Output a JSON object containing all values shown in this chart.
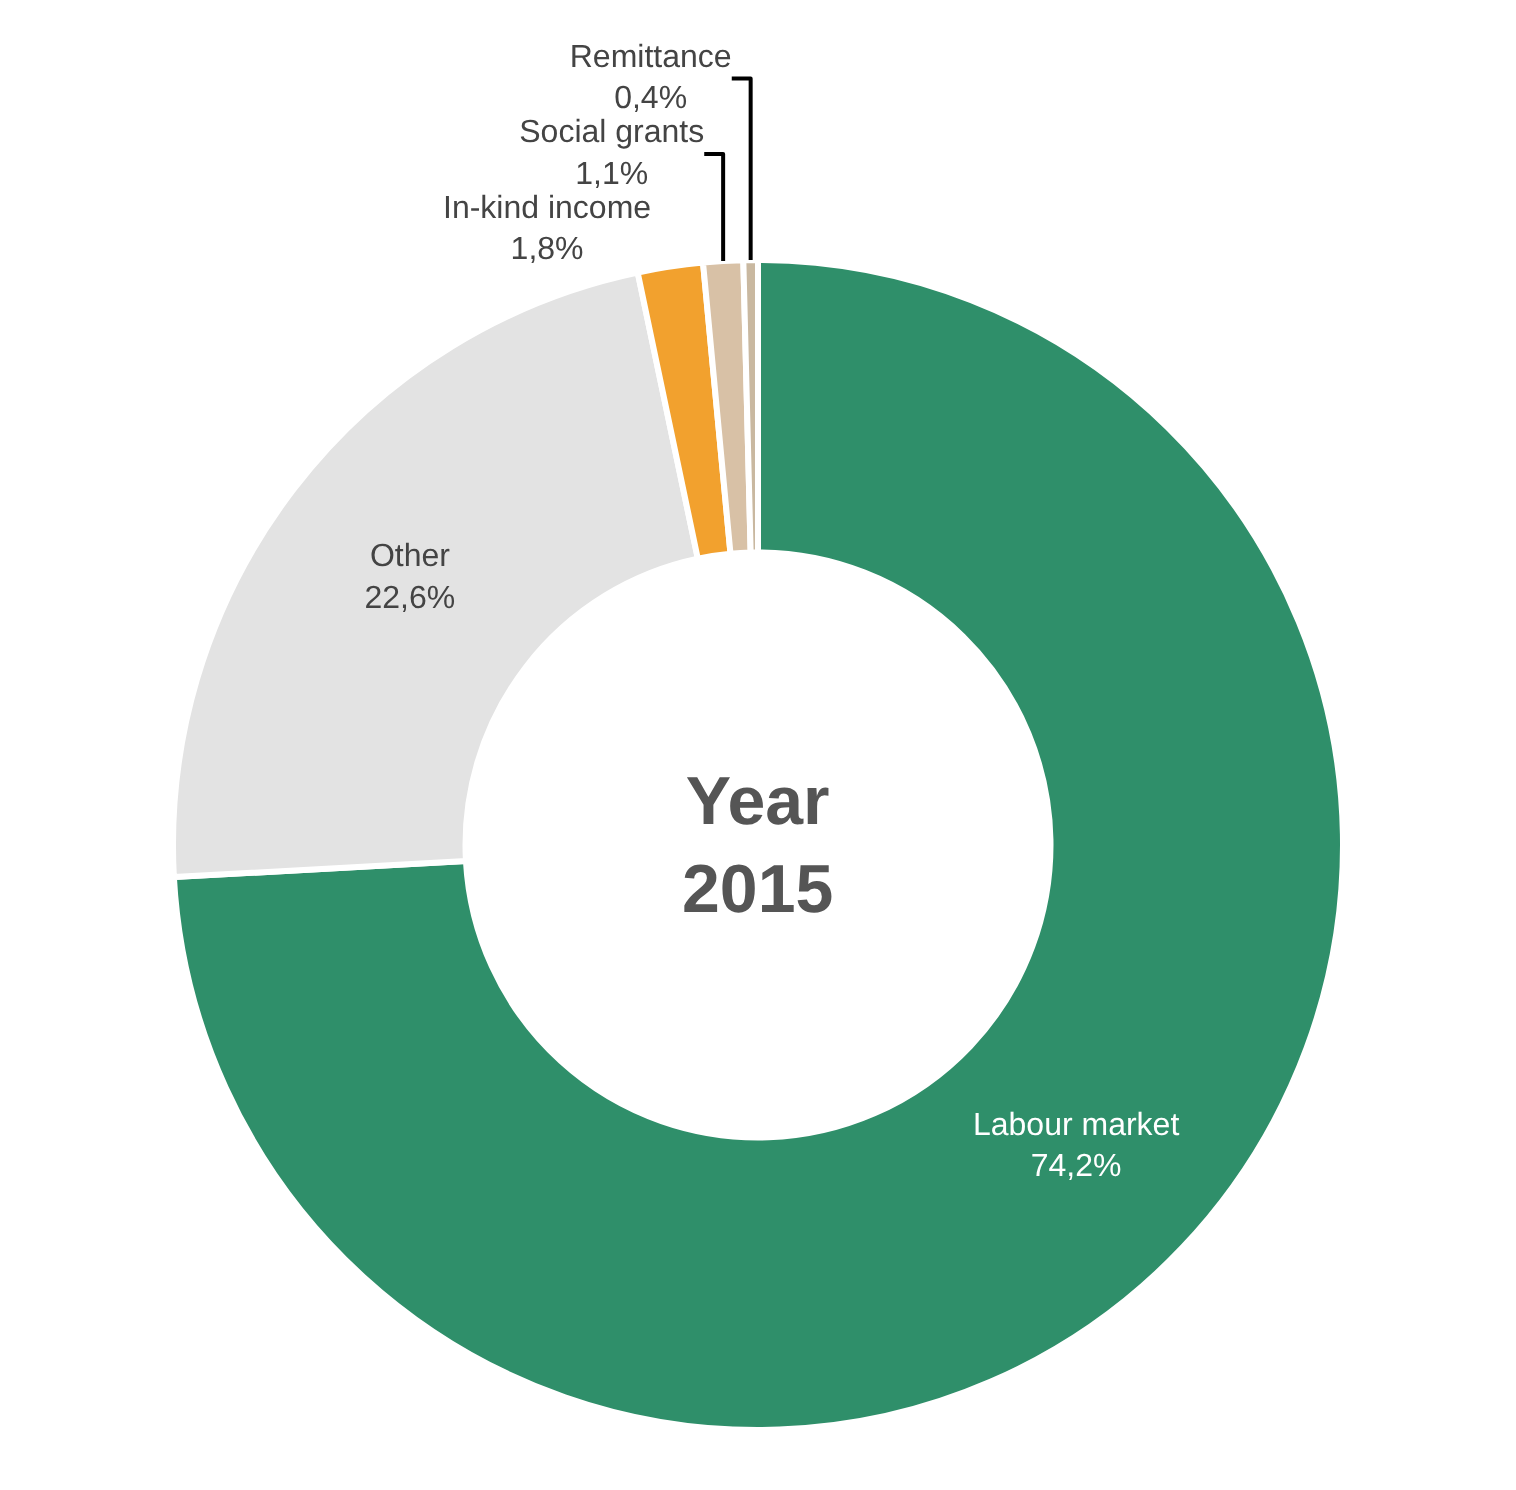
{
  "chart_data": {
    "type": "donut",
    "title": "Year\n2015",
    "categories": [
      "Labour market",
      "Other",
      "In-kind income",
      "Social grants",
      "Remittance"
    ],
    "values": [
      74.2,
      22.6,
      1.8,
      1.1,
      0.4
    ],
    "value_labels": [
      "74,2%",
      "22,6%",
      "1,8%",
      "1,1%",
      "0,4%"
    ],
    "colors": [
      "#2f8f6a",
      "#e3e3e3",
      "#f2a12e",
      "#d8c1a6",
      "#c9b8a0"
    ],
    "legend": false
  }
}
